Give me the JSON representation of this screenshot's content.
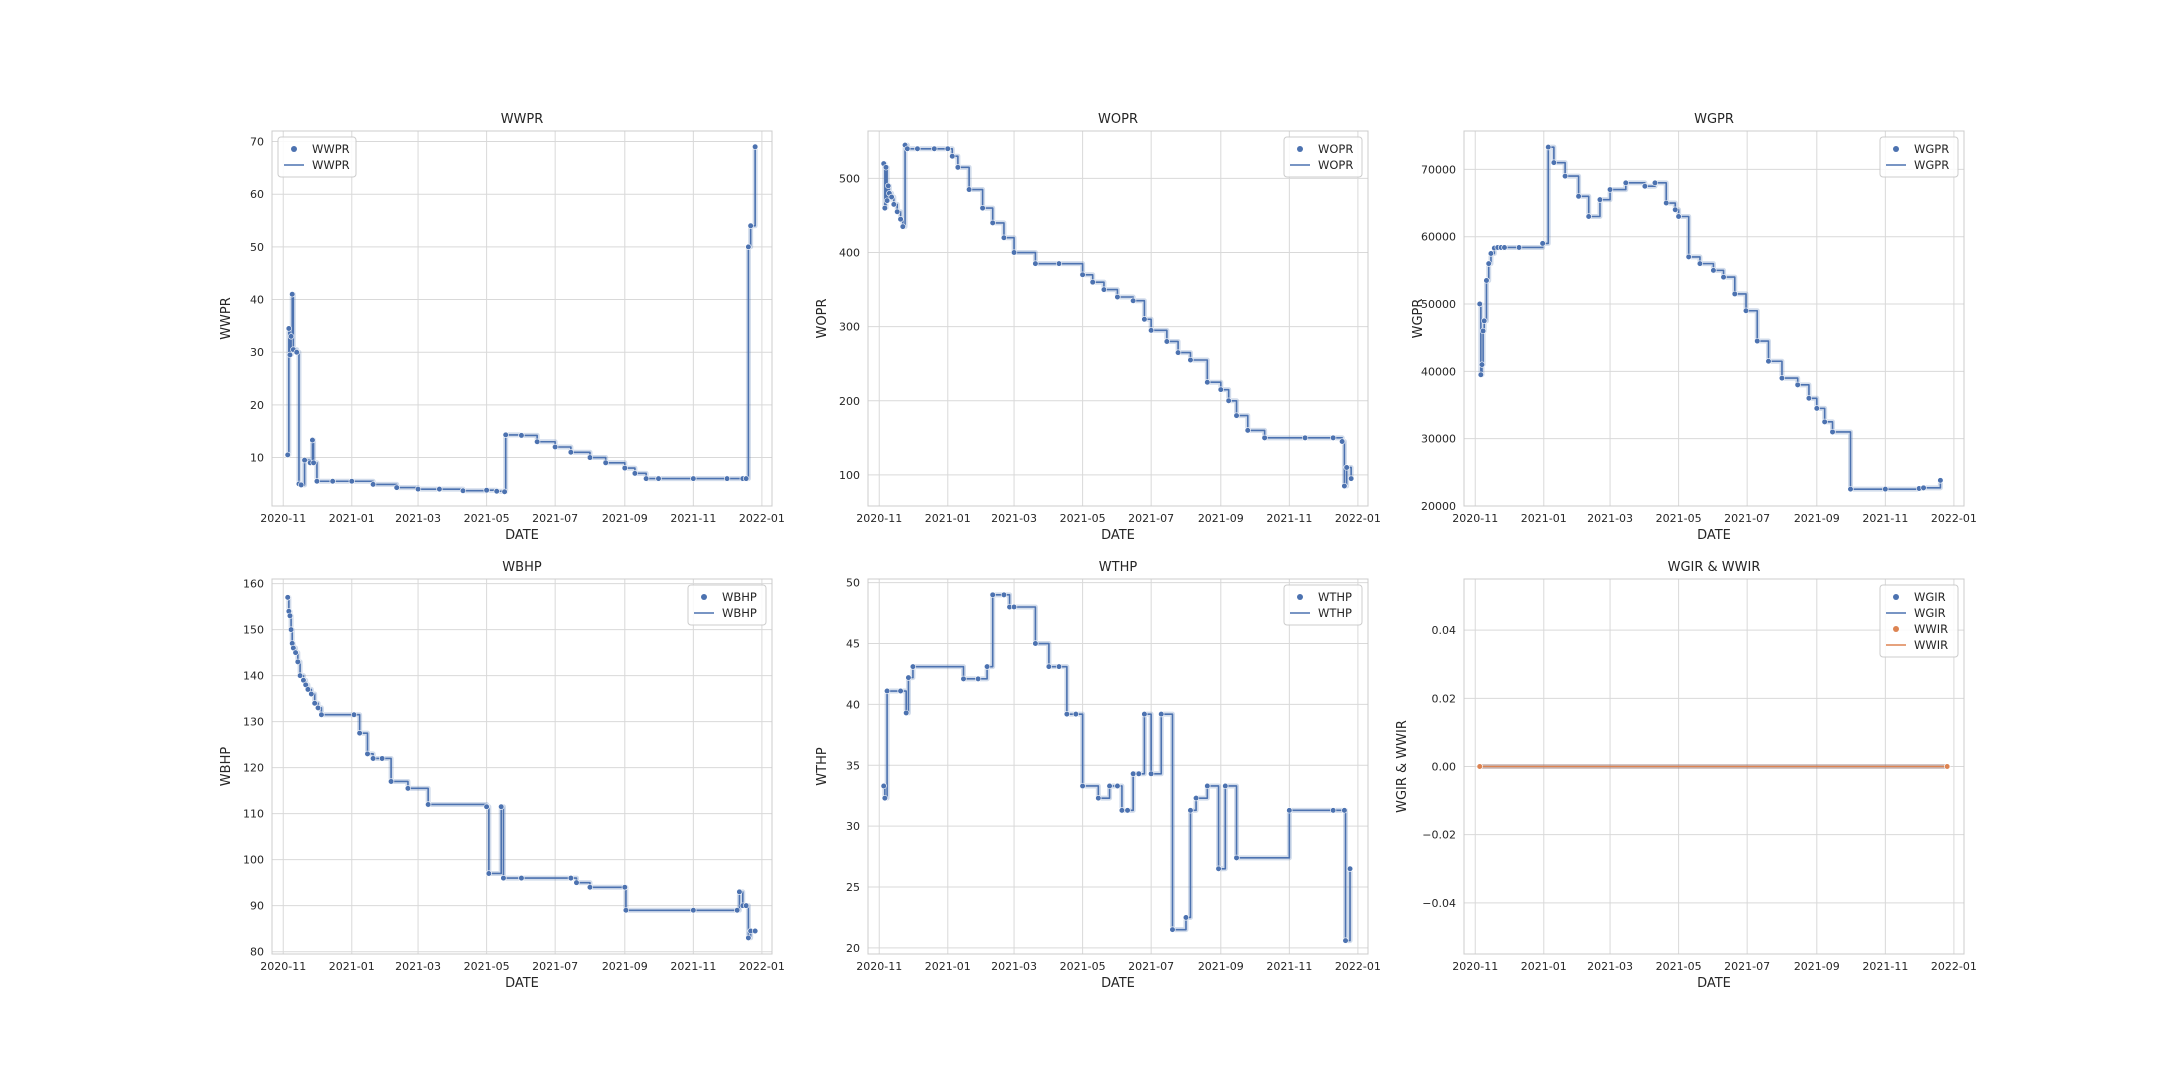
{
  "chart_data": [
    {
      "type": "line",
      "title": "WWPR",
      "xlabel": "DATE",
      "ylabel": "WWPR",
      "xlim": [
        "2020-10-22",
        "2022-01-10"
      ],
      "ylim": [
        0.8,
        72
      ],
      "xticks": [
        "2020-11",
        "2021-01",
        "2021-03",
        "2021-05",
        "2021-07",
        "2021-09",
        "2021-11",
        "2022-01"
      ],
      "yticks": [
        10,
        20,
        30,
        40,
        50,
        60,
        70
      ],
      "grid": true,
      "legend": {
        "position": "upper-left",
        "entries": [
          {
            "label": "WWPR",
            "kind": "marker"
          },
          {
            "label": "WWPR",
            "kind": "line"
          }
        ]
      },
      "series": [
        {
          "name": "WWPR",
          "color": "#4c72b0",
          "x": [
            "2020-11-05",
            "2020-11-06",
            "2020-11-07",
            "2020-11-08",
            "2020-11-09",
            "2020-11-10",
            "2020-11-13",
            "2020-11-15",
            "2020-11-17",
            "2020-11-20",
            "2020-11-25",
            "2020-11-27",
            "2020-11-28",
            "2020-12-01",
            "2020-12-15",
            "2021-01-01",
            "2021-01-20",
            "2021-02-10",
            "2021-03-01",
            "2021-03-20",
            "2021-04-10",
            "2021-05-01",
            "2021-05-10",
            "2021-05-17",
            "2021-05-18",
            "2021-06-01",
            "2021-06-15",
            "2021-07-01",
            "2021-07-15",
            "2021-08-01",
            "2021-08-15",
            "2021-09-01",
            "2021-09-10",
            "2021-09-20",
            "2021-10-01",
            "2021-11-01",
            "2021-12-01",
            "2021-12-15",
            "2021-12-18",
            "2021-12-20",
            "2021-12-22",
            "2021-12-26"
          ],
          "y": [
            10.5,
            34.5,
            29.5,
            33.0,
            41.0,
            30.5,
            30.0,
            5.0,
            4.8,
            9.5,
            9.0,
            13.3,
            9.0,
            5.5,
            5.5,
            5.5,
            4.9,
            4.3,
            4.0,
            4.0,
            3.7,
            3.8,
            3.6,
            3.5,
            14.3,
            14.2,
            13.0,
            12.0,
            11.0,
            10.0,
            9.0,
            8.0,
            7.0,
            6.0,
            6.0,
            6.0,
            6.0,
            6.0,
            6.0,
            50.0,
            54.0,
            69.0
          ]
        }
      ]
    },
    {
      "type": "line",
      "title": "WOPR",
      "xlabel": "DATE",
      "ylabel": "WOPR",
      "xlim": [
        "2020-10-22",
        "2022-01-10"
      ],
      "ylim": [
        58,
        564
      ],
      "xticks": [
        "2020-11",
        "2021-01",
        "2021-03",
        "2021-05",
        "2021-07",
        "2021-09",
        "2021-11",
        "2022-01"
      ],
      "yticks": [
        100,
        200,
        300,
        400,
        500
      ],
      "grid": true,
      "legend": {
        "position": "upper-right",
        "entries": [
          {
            "label": "WOPR",
            "kind": "marker"
          },
          {
            "label": "WOPR",
            "kind": "line"
          }
        ]
      },
      "series": [
        {
          "name": "WOPR",
          "color": "#4c72b0",
          "x": [
            "2020-11-05",
            "2020-11-06",
            "2020-11-07",
            "2020-11-08",
            "2020-11-09",
            "2020-11-10",
            "2020-11-12",
            "2020-11-14",
            "2020-11-17",
            "2020-11-20",
            "2020-11-22",
            "2020-11-24",
            "2020-11-26",
            "2020-12-05",
            "2020-12-20",
            "2021-01-01",
            "2021-01-05",
            "2021-01-10",
            "2021-01-20",
            "2021-02-01",
            "2021-02-10",
            "2021-02-20",
            "2021-03-01",
            "2021-03-20",
            "2021-04-10",
            "2021-05-01",
            "2021-05-10",
            "2021-05-20",
            "2021-06-01",
            "2021-06-15",
            "2021-06-25",
            "2021-07-01",
            "2021-07-15",
            "2021-07-25",
            "2021-08-05",
            "2021-08-20",
            "2021-09-01",
            "2021-09-08",
            "2021-09-15",
            "2021-09-25",
            "2021-10-10",
            "2021-11-15",
            "2021-12-10",
            "2021-12-18",
            "2021-12-20",
            "2021-12-22",
            "2021-12-26"
          ],
          "y": [
            520,
            460,
            515,
            470,
            490,
            480,
            475,
            465,
            455,
            445,
            435,
            545,
            540,
            540,
            540,
            540,
            530,
            515,
            485,
            460,
            440,
            420,
            400,
            385,
            385,
            370,
            360,
            350,
            340,
            335,
            310,
            295,
            280,
            265,
            255,
            225,
            215,
            200,
            180,
            160,
            150,
            150,
            150,
            145,
            85,
            110,
            95
          ]
        }
      ]
    },
    {
      "type": "line",
      "title": "WGPR",
      "xlabel": "DATE",
      "ylabel": "WGPR",
      "xlim": [
        "2020-10-22",
        "2022-01-10"
      ],
      "ylim": [
        20000,
        75700
      ],
      "xticks": [
        "2020-11",
        "2021-01",
        "2021-03",
        "2021-05",
        "2021-07",
        "2021-09",
        "2021-11",
        "2022-01"
      ],
      "yticks": [
        20000,
        30000,
        40000,
        50000,
        60000,
        70000
      ],
      "grid": true,
      "legend": {
        "position": "upper-right",
        "entries": [
          {
            "label": "WGPR",
            "kind": "marker"
          },
          {
            "label": "WGPR",
            "kind": "line"
          }
        ]
      },
      "series": [
        {
          "name": "WGPR",
          "color": "#4c72b0",
          "x": [
            "2020-11-05",
            "2020-11-06",
            "2020-11-07",
            "2020-11-08",
            "2020-11-09",
            "2020-11-11",
            "2020-11-13",
            "2020-11-15",
            "2020-11-18",
            "2020-11-21",
            "2020-11-24",
            "2020-11-27",
            "2020-12-10",
            "2020-12-31",
            "2021-01-05",
            "2021-01-10",
            "2021-01-20",
            "2021-02-01",
            "2021-02-10",
            "2021-02-20",
            "2021-03-01",
            "2021-03-15",
            "2021-04-01",
            "2021-04-10",
            "2021-04-20",
            "2021-04-28",
            "2021-05-01",
            "2021-05-10",
            "2021-05-20",
            "2021-06-01",
            "2021-06-10",
            "2021-06-20",
            "2021-06-30",
            "2021-07-10",
            "2021-07-20",
            "2021-08-01",
            "2021-08-15",
            "2021-08-25",
            "2021-09-01",
            "2021-09-08",
            "2021-09-15",
            "2021-10-01",
            "2021-11-01",
            "2021-12-01",
            "2021-12-05",
            "2021-12-20"
          ],
          "y": [
            50000,
            39500,
            41000,
            46000,
            47500,
            53500,
            56000,
            57500,
            58300,
            58400,
            58400,
            58400,
            58400,
            59000,
            73300,
            71000,
            69000,
            66000,
            63000,
            65500,
            67000,
            68000,
            67500,
            68000,
            65000,
            64000,
            63000,
            57000,
            56000,
            55000,
            54000,
            51500,
            49000,
            44500,
            41500,
            39000,
            38000,
            36000,
            34500,
            32500,
            31000,
            22500,
            22500,
            22600,
            22700,
            23800
          ]
        }
      ]
    },
    {
      "type": "line",
      "title": "WBHP",
      "xlabel": "DATE",
      "ylabel": "WBHP",
      "xlim": [
        "2020-10-22",
        "2022-01-10"
      ],
      "ylim": [
        79.5,
        161
      ],
      "xticks": [
        "2020-11",
        "2021-01",
        "2021-03",
        "2021-05",
        "2021-07",
        "2021-09",
        "2021-11",
        "2022-01"
      ],
      "yticks": [
        80,
        90,
        100,
        110,
        120,
        130,
        140,
        150,
        160
      ],
      "grid": true,
      "legend": {
        "position": "upper-right",
        "entries": [
          {
            "label": "WBHP",
            "kind": "marker"
          },
          {
            "label": "WBHP",
            "kind": "line"
          }
        ]
      },
      "series": [
        {
          "name": "WBHP",
          "color": "#4c72b0",
          "x": [
            "2020-11-05",
            "2020-11-06",
            "2020-11-07",
            "2020-11-08",
            "2020-11-09",
            "2020-11-10",
            "2020-11-12",
            "2020-11-14",
            "2020-11-16",
            "2020-11-19",
            "2020-11-21",
            "2020-11-23",
            "2020-11-26",
            "2020-11-29",
            "2020-12-02",
            "2020-12-05",
            "2021-01-03",
            "2021-01-08",
            "2021-01-15",
            "2021-01-20",
            "2021-01-28",
            "2021-02-05",
            "2021-02-20",
            "2021-03-10",
            "2021-05-01",
            "2021-05-03",
            "2021-05-14",
            "2021-05-16",
            "2021-06-01",
            "2021-07-15",
            "2021-07-20",
            "2021-08-01",
            "2021-09-01",
            "2021-09-02",
            "2021-11-01",
            "2021-12-10",
            "2021-12-12",
            "2021-12-15",
            "2021-12-18",
            "2021-12-20",
            "2021-12-22",
            "2021-12-26"
          ],
          "y": [
            157,
            154,
            153,
            150,
            147,
            146,
            145,
            143,
            140,
            139,
            138,
            137,
            136,
            134,
            133,
            131.5,
            131.5,
            127.5,
            123,
            122,
            122,
            117,
            115.5,
            112,
            111.5,
            97,
            111.5,
            96,
            96,
            96,
            95,
            94,
            94,
            89,
            89,
            89,
            93,
            90,
            90,
            83,
            84.5,
            84.5
          ]
        }
      ]
    },
    {
      "type": "line",
      "title": "WTHP",
      "xlabel": "DATE",
      "ylabel": "WTHP",
      "xlim": [
        "2020-10-22",
        "2022-01-10"
      ],
      "ylim": [
        19.5,
        50.3
      ],
      "xticks": [
        "2020-11",
        "2021-01",
        "2021-03",
        "2021-05",
        "2021-07",
        "2021-09",
        "2021-11",
        "2022-01"
      ],
      "yticks": [
        20,
        25,
        30,
        35,
        40,
        45,
        50
      ],
      "grid": true,
      "legend": {
        "position": "upper-right",
        "entries": [
          {
            "label": "WTHP",
            "kind": "marker"
          },
          {
            "label": "WTHP",
            "kind": "line"
          }
        ]
      },
      "series": [
        {
          "name": "WTHP",
          "color": "#4c72b0",
          "x": [
            "2020-11-05",
            "2020-11-06",
            "2020-11-08",
            "2020-11-20",
            "2020-11-25",
            "2020-11-27",
            "2020-12-01",
            "2021-01-15",
            "2021-01-28",
            "2021-02-05",
            "2021-02-10",
            "2021-02-20",
            "2021-02-25",
            "2021-03-01",
            "2021-03-20",
            "2021-04-01",
            "2021-04-10",
            "2021-04-17",
            "2021-04-25",
            "2021-05-01",
            "2021-05-15",
            "2021-05-25",
            "2021-06-01",
            "2021-06-05",
            "2021-06-10",
            "2021-06-15",
            "2021-06-20",
            "2021-06-25",
            "2021-07-01",
            "2021-07-10",
            "2021-07-20",
            "2021-08-01",
            "2021-08-05",
            "2021-08-10",
            "2021-08-20",
            "2021-08-30",
            "2021-09-05",
            "2021-09-15",
            "2021-11-01",
            "2021-12-10",
            "2021-12-20",
            "2021-12-21",
            "2021-12-25"
          ],
          "y": [
            33.3,
            32.3,
            41.1,
            41.1,
            39.3,
            42.2,
            43.1,
            42.1,
            42.1,
            43.1,
            49,
            49,
            48,
            48,
            45,
            43.1,
            43.1,
            39.2,
            39.2,
            33.3,
            32.3,
            33.3,
            33.3,
            31.3,
            31.3,
            34.3,
            34.3,
            39.2,
            34.3,
            39.2,
            21.5,
            22.5,
            31.3,
            32.3,
            33.3,
            26.5,
            33.3,
            27.4,
            31.3,
            31.3,
            31.3,
            20.6,
            26.5
          ]
        }
      ]
    },
    {
      "type": "line",
      "title": "WGIR & WWIR",
      "xlabel": "DATE",
      "ylabel": "WGIR & WWIR",
      "xlim": [
        "2020-10-22",
        "2022-01-10"
      ],
      "ylim": [
        -0.055,
        0.055
      ],
      "xticks": [
        "2020-11",
        "2021-01",
        "2021-03",
        "2021-05",
        "2021-07",
        "2021-09",
        "2021-11",
        "2022-01"
      ],
      "yticks": [
        -0.04,
        -0.02,
        0.0,
        0.02,
        0.04
      ],
      "ytick_labels": [
        "−0.04",
        "−0.02",
        "0.00",
        "0.02",
        "0.04"
      ],
      "grid": true,
      "legend": {
        "position": "upper-right",
        "entries": [
          {
            "label": "WGIR",
            "kind": "marker"
          },
          {
            "label": "WGIR",
            "kind": "line"
          },
          {
            "label": "WWIR",
            "kind": "marker"
          },
          {
            "label": "WWIR",
            "kind": "line"
          }
        ]
      },
      "series": [
        {
          "name": "WGIR",
          "color": "#4c72b0",
          "x": [
            "2020-11-05",
            "2021-12-26"
          ],
          "y": [
            0,
            0
          ]
        },
        {
          "name": "WWIR",
          "color": "#dd8452",
          "x": [
            "2020-11-05",
            "2021-12-26"
          ],
          "y": [
            0,
            0
          ]
        }
      ]
    }
  ]
}
